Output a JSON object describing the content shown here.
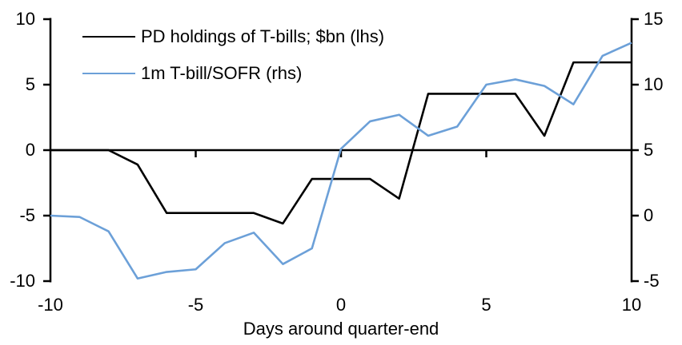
{
  "chart_data": {
    "type": "line",
    "xlabel": "Days around quarter-end",
    "x": [
      -10,
      -9,
      -8,
      -7,
      -6,
      -5,
      -4,
      -3,
      -2,
      -1,
      0,
      1,
      2,
      3,
      4,
      5,
      6,
      7,
      8,
      9,
      10
    ],
    "series": [
      {
        "name": "PD holdings of T-bills; $bn (lhs)",
        "axis": "left",
        "color": "#000000",
        "values": [
          0,
          0,
          0,
          -1.1,
          -4.8,
          -4.8,
          -4.8,
          -4.8,
          -5.6,
          -2.2,
          -2.2,
          -2.2,
          -3.7,
          4.3,
          4.3,
          4.3,
          4.3,
          1.1,
          6.7,
          6.7,
          6.7
        ]
      },
      {
        "name": "1m T-bill/SOFR (rhs)",
        "axis": "right",
        "color": "#6CA0D8",
        "values": [
          0,
          -0.1,
          -1.2,
          -4.8,
          -4.3,
          -4.1,
          -2.1,
          -1.3,
          -3.7,
          -2.5,
          5.1,
          7.2,
          7.7,
          6.1,
          6.8,
          10.0,
          10.4,
          9.9,
          8.5,
          12.2,
          13.2
        ]
      }
    ],
    "left_axis": {
      "min": -10,
      "max": 10,
      "ticks": [
        10,
        5,
        0,
        -5,
        -10
      ]
    },
    "right_axis": {
      "min": -5,
      "max": 15,
      "ticks": [
        15,
        10,
        5,
        0,
        -5
      ]
    },
    "x_axis": {
      "min": -10,
      "max": 10,
      "ticks": [
        -10,
        -5,
        0,
        5,
        10
      ],
      "zero_line": true
    },
    "grid": false,
    "legend_position": "top-left",
    "axis_color": "#000000"
  }
}
